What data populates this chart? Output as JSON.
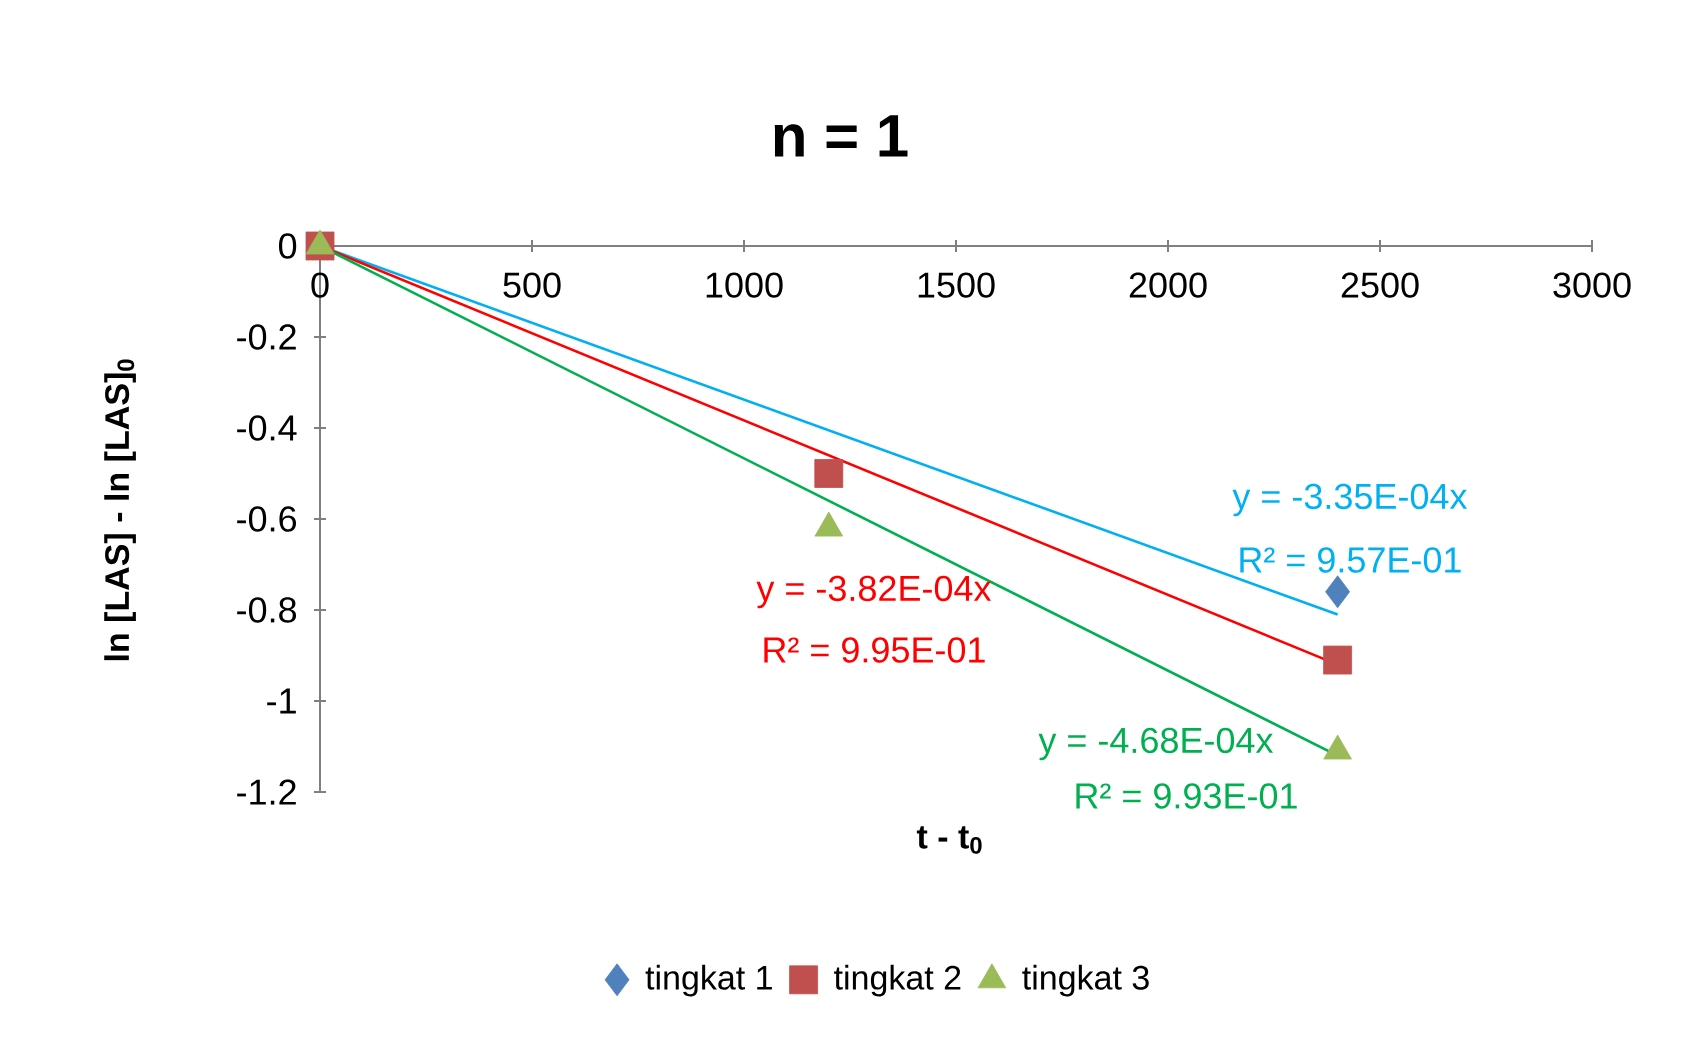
{
  "chart_data": {
    "type": "scatter",
    "title": "n = 1",
    "xlabel": "t - t$_{0}$",
    "ylabel": "ln [LAS] - ln [LAS]$_{0}$",
    "xlim": [
      0,
      3000
    ],
    "xticks": [
      0,
      500,
      1000,
      1500,
      2000,
      2500,
      3000
    ],
    "ylim": [
      -1.2,
      0
    ],
    "yticks": [
      0,
      -0.2,
      -0.4,
      -0.6,
      -0.8,
      -1,
      -1.2
    ],
    "legend": "bottom",
    "series": [
      {
        "name": "tingkat 1",
        "color": "#4f81bd",
        "marker": "diamond",
        "x": [
          2400
        ],
        "values": [
          -0.76
        ]
      },
      {
        "name": "tingkat 2",
        "color": "#c0504d",
        "marker": "square",
        "x": [
          0,
          1200,
          2400
        ],
        "values": [
          0,
          -0.5,
          -0.91
        ]
      },
      {
        "name": "tingkat 3",
        "color": "#9bbb59",
        "marker": "triangle",
        "x": [
          0,
          1200,
          2400
        ],
        "values": [
          0,
          -0.62,
          -1.11
        ]
      },
      {
        "type": "line",
        "color": "#00b0f0",
        "marker": "none",
        "x": [
          0,
          2400
        ],
        "values": [
          0,
          -0.81
        ]
      },
      {
        "type": "line",
        "color": "#ff0000",
        "marker": "none",
        "x": [
          0,
          2400
        ],
        "values": [
          0,
          -0.92
        ]
      },
      {
        "type": "line",
        "color": "#00b050",
        "marker": "none",
        "x": [
          0,
          2400
        ],
        "values": [
          0,
          -1.12
        ]
      }
    ],
    "annotations": [
      "y = -3.35E-04x",
      "R² = 9.57E-01",
      "y = -3.82E-04x",
      "R² = 9.95E-01",
      "y = -4.68E-04x",
      "R² = 9.93E-01"
    ]
  }
}
